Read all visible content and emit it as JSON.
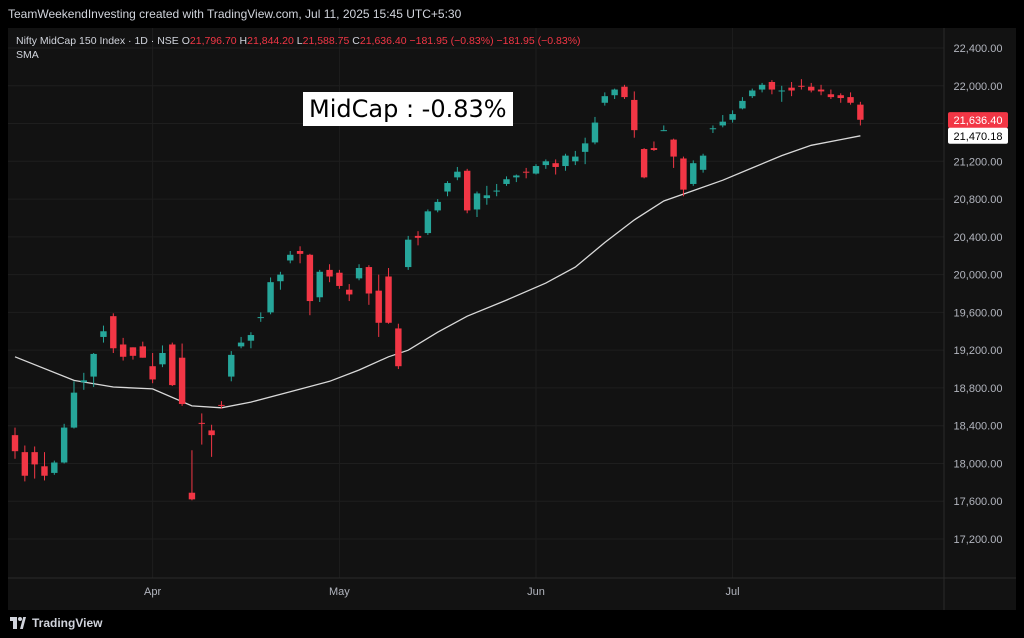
{
  "header": {
    "text": "TeamWeekendInvesting created with TradingView.com, Jul 11, 2025 15:45 UTC+5:30"
  },
  "legend": {
    "symbol": "Nifty MidCap 150 Index · 1D · NSE",
    "o_label": "O",
    "o_value": "21,796.70",
    "h_label": "H",
    "h_value": "21,844.20",
    "l_label": "L",
    "l_value": "21,588.75",
    "c_label": "C",
    "c_value": "21,636.40",
    "change": "−181.95 (−0.83%)",
    "change2": "−181.95 (−0.83%)",
    "indicator": "SMA"
  },
  "annotation": "MidCap : -0.83%",
  "footer": {
    "brand": "TradingView"
  },
  "colors": {
    "up": "#26a69a",
    "down": "#f23645",
    "sma": "#d9d9d9",
    "grid": "#1e1e1e"
  },
  "chart_data": {
    "type": "candlestick",
    "ylim": [
      16900,
      22550
    ],
    "y_ticks": [
      "17,200.00",
      "17,600.00",
      "18,000.00",
      "18,400.00",
      "18,800.00",
      "19,200.00",
      "19,600.00",
      "20,000.00",
      "20,400.00",
      "20,800.00",
      "21,200.00",
      "21,600.00",
      "22,000.00",
      "22,400.00"
    ],
    "x_tick_labels": [
      {
        "label": "Apr",
        "index": 14
      },
      {
        "label": "May",
        "index": 33
      },
      {
        "label": "Jun",
        "index": 53
      },
      {
        "label": "Jul",
        "index": 73
      }
    ],
    "price_labels": {
      "close": "21,636.40",
      "sma": "21,470.18"
    },
    "candles": [
      [
        18300,
        18380,
        18050,
        18130
      ],
      [
        18120,
        18190,
        17810,
        17870
      ],
      [
        18120,
        18180,
        17840,
        17990
      ],
      [
        17970,
        18120,
        17820,
        17870
      ],
      [
        17900,
        18030,
        17880,
        18010
      ],
      [
        18010,
        18420,
        18000,
        18380
      ],
      [
        18380,
        18870,
        18370,
        18750
      ],
      [
        18860,
        18960,
        18780,
        18880
      ],
      [
        18920,
        19170,
        18810,
        19160
      ],
      [
        19340,
        19460,
        19280,
        19400
      ],
      [
        19560,
        19590,
        19170,
        19220
      ],
      [
        19260,
        19330,
        19090,
        19130
      ],
      [
        19230,
        19230,
        19100,
        19140
      ],
      [
        19240,
        19290,
        19120,
        19120
      ],
      [
        19030,
        19170,
        18850,
        18890
      ],
      [
        19050,
        19250,
        19020,
        19170
      ],
      [
        19260,
        19280,
        18820,
        18830
      ],
      [
        19120,
        19270,
        18610,
        18630
      ],
      [
        17690,
        18140,
        17610,
        17620
      ],
      [
        18430,
        18530,
        18200,
        18420
      ],
      [
        18350,
        18410,
        18070,
        18300
      ],
      [
        18620,
        18660,
        18580,
        18610
      ],
      [
        18920,
        19190,
        18870,
        19150
      ],
      [
        19240,
        19340,
        19220,
        19280
      ],
      [
        19300,
        19390,
        19220,
        19360
      ],
      [
        19540,
        19600,
        19500,
        19550
      ],
      [
        19600,
        19970,
        19580,
        19920
      ],
      [
        19930,
        20030,
        19840,
        20000
      ],
      [
        20150,
        20250,
        20120,
        20210
      ],
      [
        20250,
        20300,
        20120,
        20220
      ],
      [
        20210,
        20220,
        19570,
        19720
      ],
      [
        19760,
        20050,
        19710,
        20030
      ],
      [
        20050,
        20110,
        19920,
        19980
      ],
      [
        20020,
        20050,
        19850,
        19880
      ],
      [
        19840,
        19900,
        19720,
        19790
      ],
      [
        19960,
        20110,
        19940,
        20070
      ],
      [
        20080,
        20100,
        19680,
        19800
      ],
      [
        19830,
        20000,
        19340,
        19490
      ],
      [
        19980,
        20070,
        19480,
        19490
      ],
      [
        19430,
        19480,
        19000,
        19030
      ],
      [
        20080,
        20410,
        20050,
        20370
      ],
      [
        20410,
        20460,
        20310,
        20390
      ],
      [
        20440,
        20690,
        20420,
        20670
      ],
      [
        20680,
        20800,
        20660,
        20770
      ],
      [
        20880,
        20990,
        20830,
        20970
      ],
      [
        21030,
        21140,
        21000,
        21090
      ],
      [
        21100,
        21120,
        20650,
        20680
      ],
      [
        20690,
        20880,
        20610,
        20860
      ],
      [
        20810,
        20940,
        20740,
        20840
      ],
      [
        20890,
        20960,
        20830,
        20890
      ],
      [
        20960,
        21040,
        20940,
        21010
      ],
      [
        21030,
        21060,
        20980,
        21050
      ],
      [
        21090,
        21130,
        21020,
        21080
      ],
      [
        21070,
        21170,
        21060,
        21150
      ],
      [
        21160,
        21220,
        21120,
        21200
      ],
      [
        21180,
        21220,
        21060,
        21140
      ],
      [
        21150,
        21280,
        21100,
        21260
      ],
      [
        21200,
        21310,
        21160,
        21250
      ],
      [
        21300,
        21450,
        21170,
        21390
      ],
      [
        21400,
        21670,
        21380,
        21610
      ],
      [
        21820,
        21930,
        21790,
        21890
      ],
      [
        21900,
        21970,
        21860,
        21960
      ],
      [
        21990,
        22010,
        21860,
        21880
      ],
      [
        21850,
        21940,
        21450,
        21530
      ],
      [
        21330,
        21340,
        21020,
        21030
      ],
      [
        21340,
        21410,
        21310,
        21320
      ],
      [
        21530,
        21580,
        21520,
        21530
      ],
      [
        21430,
        21440,
        21130,
        21250
      ],
      [
        21230,
        21250,
        20830,
        20900
      ],
      [
        20960,
        21210,
        20940,
        21180
      ],
      [
        21110,
        21280,
        21080,
        21260
      ],
      [
        21540,
        21580,
        21500,
        21550
      ],
      [
        21580,
        21690,
        21560,
        21620
      ],
      [
        21640,
        21740,
        21610,
        21700
      ],
      [
        21760,
        21880,
        21750,
        21840
      ],
      [
        21890,
        21970,
        21870,
        21950
      ],
      [
        21960,
        22030,
        21930,
        22010
      ],
      [
        22040,
        22060,
        21910,
        21960
      ],
      [
        21950,
        22000,
        21830,
        21950
      ],
      [
        21980,
        22040,
        21890,
        21950
      ],
      [
        22000,
        22070,
        21960,
        21990
      ],
      [
        21990,
        22030,
        21930,
        21950
      ],
      [
        21960,
        22010,
        21900,
        21940
      ],
      [
        21910,
        21960,
        21860,
        21880
      ],
      [
        21900,
        21920,
        21820,
        21870
      ],
      [
        21880,
        21930,
        21800,
        21820
      ],
      [
        21800,
        21830,
        21580,
        21640
      ]
    ],
    "sma_series": [
      [
        0,
        19130
      ],
      [
        6,
        18880
      ],
      [
        10,
        18810
      ],
      [
        14,
        18790
      ],
      [
        18,
        18610
      ],
      [
        21,
        18590
      ],
      [
        24,
        18650
      ],
      [
        28,
        18760
      ],
      [
        32,
        18870
      ],
      [
        35,
        18990
      ],
      [
        38,
        19130
      ],
      [
        40,
        19200
      ],
      [
        43,
        19390
      ],
      [
        46,
        19560
      ],
      [
        50,
        19730
      ],
      [
        54,
        19910
      ],
      [
        57,
        20080
      ],
      [
        60,
        20340
      ],
      [
        63,
        20580
      ],
      [
        66,
        20780
      ],
      [
        69,
        20890
      ],
      [
        72,
        21000
      ],
      [
        75,
        21130
      ],
      [
        78,
        21260
      ],
      [
        81,
        21370
      ],
      [
        84,
        21430
      ],
      [
        86,
        21470
      ]
    ]
  }
}
